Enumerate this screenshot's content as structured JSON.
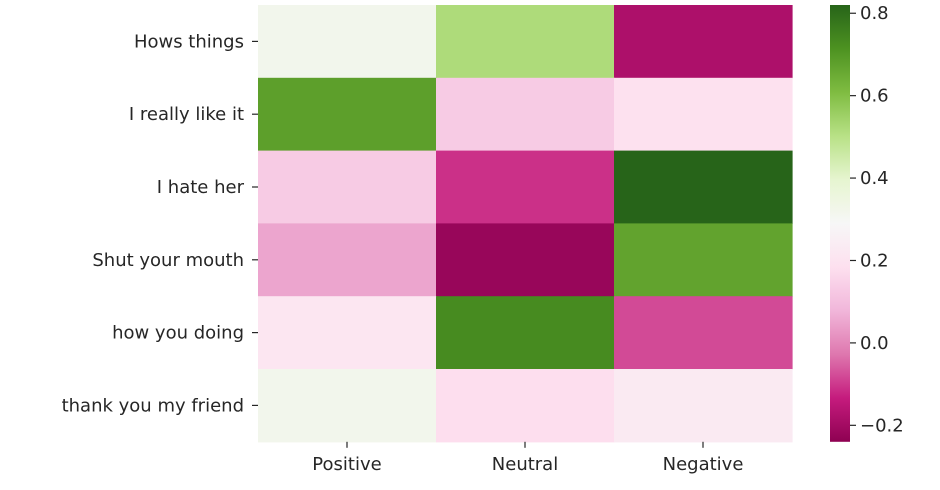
{
  "chart_data": {
    "type": "heatmap",
    "colormap": "PiYG",
    "rows": [
      "Hows things",
      "I really like it",
      "I hate her",
      "Shut your mouth",
      "how you doing",
      "thank you my friend"
    ],
    "columns": [
      "Positive",
      "Neutral",
      "Negative"
    ],
    "values": [
      [
        0.32,
        0.52,
        -0.18
      ],
      [
        0.68,
        0.13,
        0.19
      ],
      [
        0.13,
        -0.11,
        0.84
      ],
      [
        0.05,
        -0.22,
        0.67
      ],
      [
        0.21,
        0.73,
        -0.08
      ],
      [
        0.32,
        0.18,
        0.23
      ]
    ],
    "colorbar": {
      "vmin": -0.24,
      "vmax": 0.82,
      "ticks": [
        -0.2,
        0.0,
        0.2,
        0.4,
        0.6,
        0.8
      ],
      "tick_labels": [
        "−0.2",
        "0.0",
        "0.2",
        "0.4",
        "0.6",
        "0.8"
      ]
    }
  }
}
